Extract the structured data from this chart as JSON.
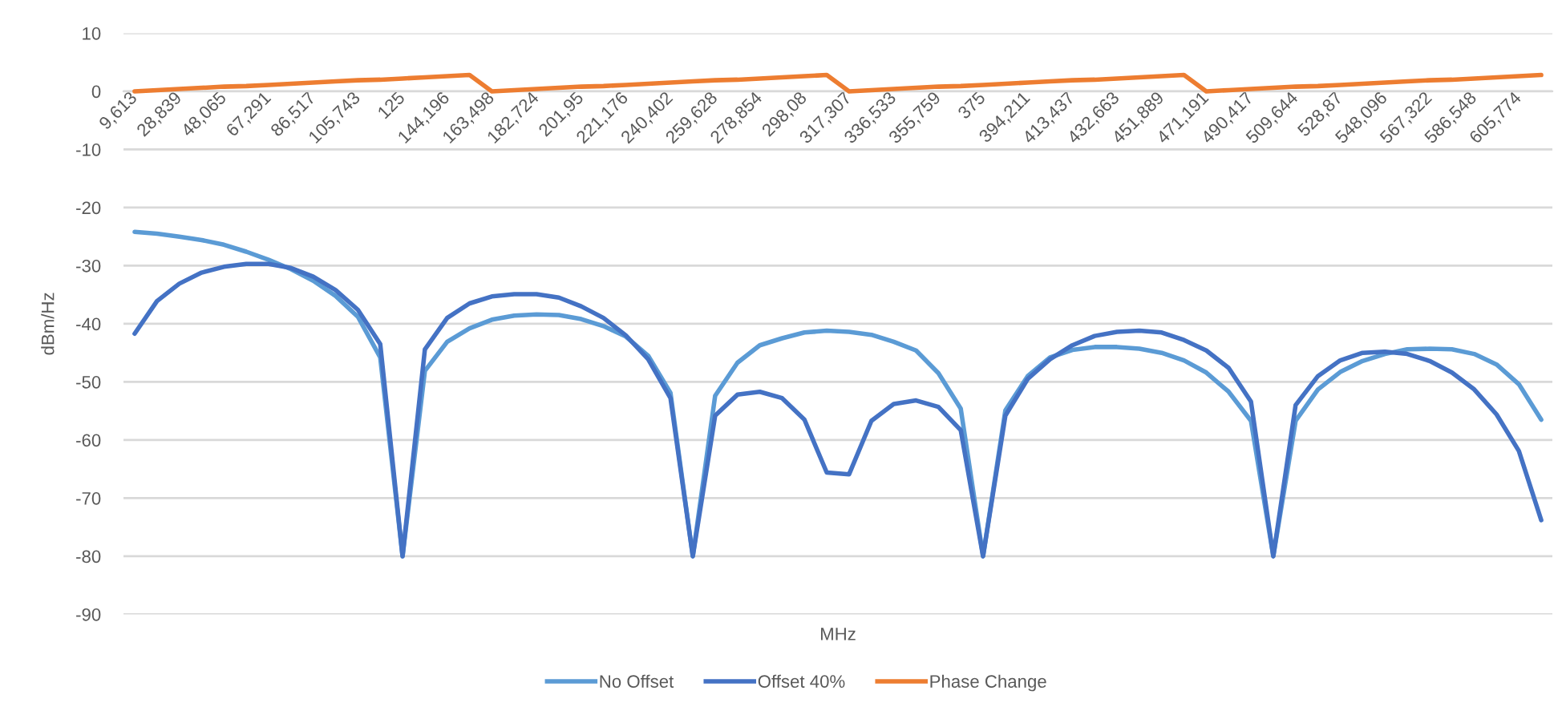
{
  "chart_data": {
    "type": "line",
    "xlabel": "MHz",
    "ylabel": "dBm/Hz",
    "categories": [
      "9,613",
      null,
      "28,839",
      null,
      "48,065",
      null,
      "67,291",
      null,
      "86,517",
      null,
      "105,743",
      null,
      "125",
      null,
      "144,196",
      null,
      "163,498",
      null,
      "182,724",
      null,
      "201,95",
      null,
      "221,176",
      null,
      "240,402",
      null,
      "259,628",
      null,
      "278,854",
      null,
      "298,08",
      null,
      "317,307",
      null,
      "336,533",
      null,
      "355,759",
      null,
      "375",
      null,
      "394,211",
      null,
      "413,437",
      null,
      "432,663",
      null,
      "451,889",
      null,
      "471,191",
      null,
      "490,417",
      null,
      "509,644",
      null,
      "528,87",
      null,
      "548,096",
      null,
      "567,322",
      null,
      "586,548",
      null,
      "605,774",
      null
    ],
    "series": [
      {
        "name": "No Offset",
        "color": "#5b9bd5",
        "values": [
          -24.2,
          -24.5,
          -25.0,
          -25.6,
          -26.4,
          -27.6,
          -29.0,
          -30.6,
          -32.6,
          -35.2,
          -38.8,
          -45.8,
          -80,
          -48.1,
          -43.1,
          -40.8,
          -39.3,
          -38.6,
          -38.4,
          -38.5,
          -39.2,
          -40.4,
          -42.2,
          -45.5,
          -51.9,
          -80,
          -52.4,
          -46.7,
          -43.7,
          -42.5,
          -41.5,
          -41.2,
          -41.4,
          -41.9,
          -43.1,
          -44.6,
          -48.5,
          -54.6,
          -80,
          -54.9,
          -49.0,
          -45.8,
          -44.5,
          -44.0,
          -44.0,
          -44.3,
          -45.0,
          -46.3,
          -48.4,
          -51.7,
          -56.7,
          -80,
          -56.7,
          -51.3,
          -48.3,
          -46.4,
          -45.2,
          -44.4,
          -44.3,
          -44.4,
          -45.2,
          -47.0,
          -50.4,
          -56.5
        ]
      },
      {
        "name": "Offset 40%",
        "color": "#4472c4",
        "values": [
          -41.7,
          -36.1,
          -33.1,
          -31.2,
          -30.2,
          -29.7,
          -29.7,
          -30.4,
          -31.9,
          -34.2,
          -37.6,
          -43.5,
          -80,
          -44.4,
          -39.0,
          -36.5,
          -35.3,
          -34.9,
          -34.9,
          -35.5,
          -37.0,
          -39.0,
          -42.0,
          -46.1,
          -52.8,
          -80,
          -55.8,
          -52.2,
          -51.7,
          -52.8,
          -56.5,
          -65.6,
          -65.9,
          -56.7,
          -53.8,
          -53.2,
          -54.3,
          -58.3,
          -80,
          -55.8,
          -49.5,
          -46.1,
          -43.7,
          -42.1,
          -41.4,
          -41.2,
          -41.5,
          -42.8,
          -44.6,
          -47.6,
          -53.4,
          -80,
          -54.0,
          -49.0,
          -46.3,
          -45.0,
          -44.8,
          -45.2,
          -46.4,
          -48.4,
          -51.3,
          -55.6,
          -61.9,
          -73.8
        ]
      },
      {
        "name": "Phase Change",
        "color": "#ed7d31",
        "values": [
          0,
          0.2,
          0.4,
          0.6,
          0.8,
          0.9,
          1.1,
          1.3,
          1.5,
          1.7,
          1.9,
          2.0,
          2.2,
          2.4,
          2.6,
          2.8,
          0,
          0.2,
          0.4,
          0.6,
          0.8,
          0.9,
          1.1,
          1.3,
          1.5,
          1.7,
          1.9,
          2.0,
          2.2,
          2.4,
          2.6,
          2.8,
          0,
          0.2,
          0.4,
          0.6,
          0.8,
          0.9,
          1.1,
          1.3,
          1.5,
          1.7,
          1.9,
          2.0,
          2.2,
          2.4,
          2.6,
          2.8,
          0,
          0.2,
          0.4,
          0.6,
          0.8,
          0.9,
          1.1,
          1.3,
          1.5,
          1.7,
          1.9,
          2.0,
          2.2,
          2.4,
          2.6,
          2.8
        ]
      }
    ],
    "ylim": [
      -90,
      10
    ],
    "yticks": [
      -90,
      -80,
      -70,
      -60,
      -50,
      -40,
      -30,
      -20,
      -10,
      0,
      10
    ],
    "grid": "y",
    "legend": "bottom"
  }
}
